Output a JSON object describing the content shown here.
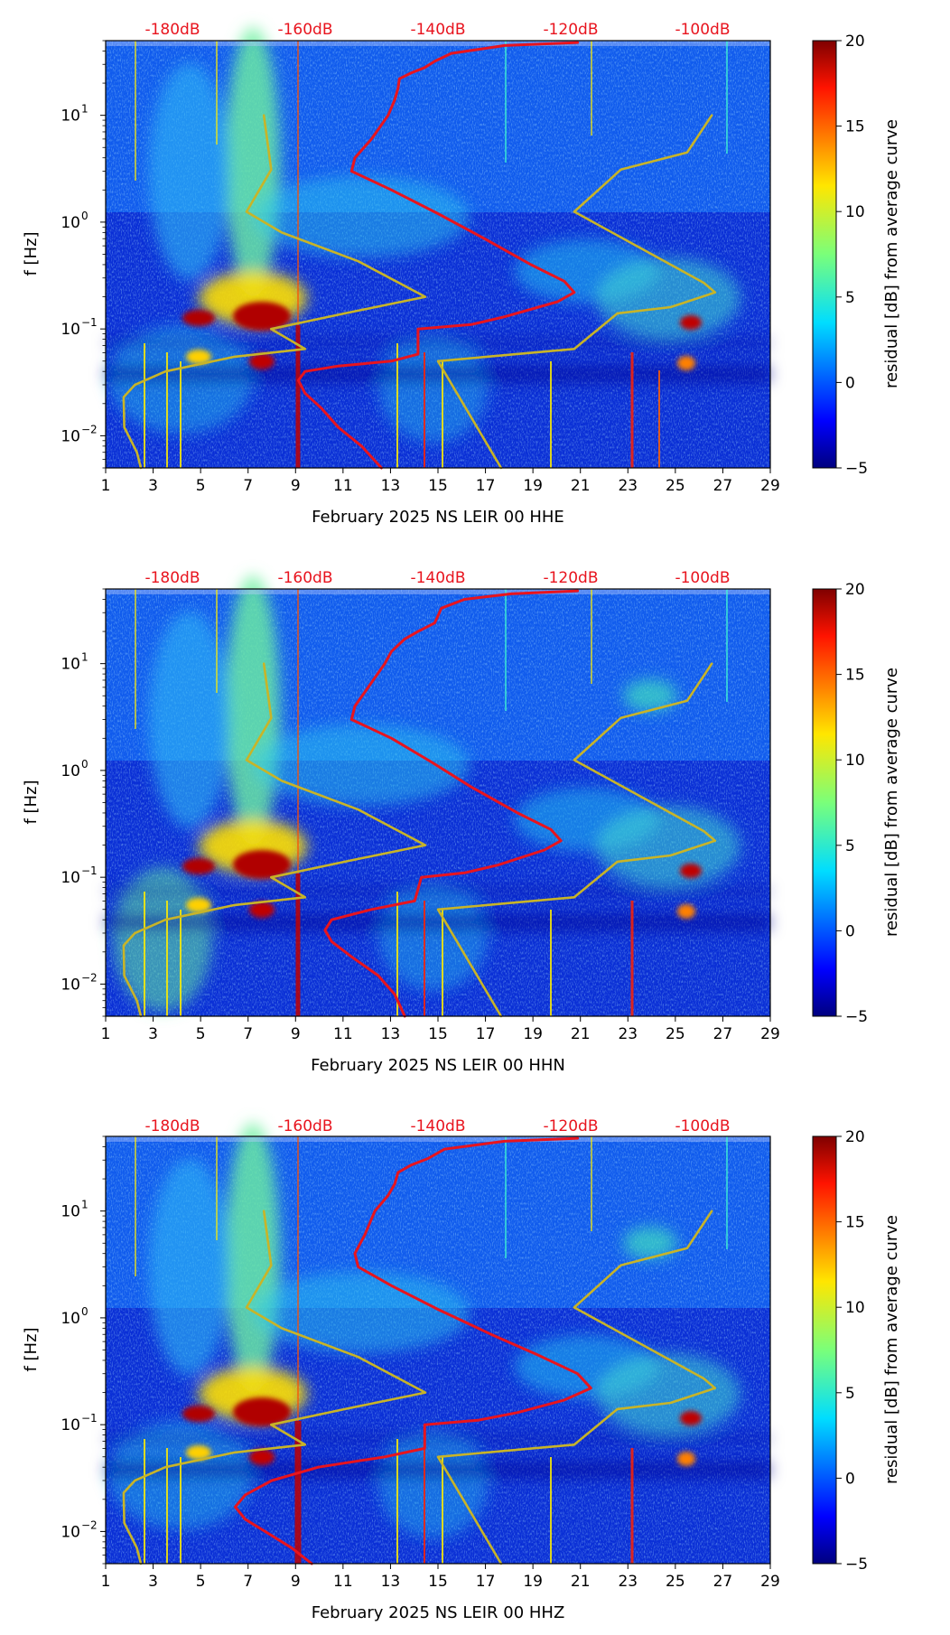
{
  "figure": {
    "ylabel": "f [Hz]",
    "colorbar_label": "residual [dB] from average curve",
    "colormap": "jet"
  },
  "colors": {
    "noise_curve": "#e8141e",
    "model_curves": "#c8b428",
    "db_axis_text": "#e8141e",
    "text": "#000000"
  },
  "chart_data": [
    {
      "type": "heatmap",
      "title": "",
      "xlabel": "February 2025 NS LEIR 00 HHE",
      "ylabel": "f [Hz]",
      "x_ticks": [
        "1",
        "3",
        "5",
        "7",
        "9",
        "11",
        "13",
        "15",
        "17",
        "19",
        "21",
        "23",
        "25",
        "27",
        "29"
      ],
      "xlim": [
        1,
        29
      ],
      "yscale": "log",
      "ylim": [
        0.005,
        50
      ],
      "y_ticks": [
        {
          "value": 0.01,
          "base": "10",
          "exp": "−2"
        },
        {
          "value": 0.1,
          "base": "10",
          "exp": "−1"
        },
        {
          "value": 1,
          "base": "10",
          "exp": "0"
        },
        {
          "value": 10,
          "base": "10",
          "exp": "1"
        }
      ],
      "top_axis": {
        "labels": [
          "-180dB",
          "-160dB",
          "-140dB",
          "-120dB",
          "-100dB"
        ],
        "values": [
          -180,
          -160,
          -140,
          -120,
          -100
        ],
        "range": [
          -190,
          -90
        ]
      },
      "colorbar": {
        "min": -5,
        "max": 20,
        "ticks": [
          "−5",
          "0",
          "5",
          "10",
          "15",
          "20"
        ],
        "label": "residual [dB] from average curve"
      },
      "series": [
        {
          "name": "noise curve",
          "color": "#e8141e",
          "points": [
            [
              -148.5,
              0.005
            ],
            [
              -151.5,
              0.008
            ],
            [
              -155,
              0.012
            ],
            [
              -157.5,
              0.018
            ],
            [
              -160,
              0.025
            ],
            [
              -161,
              0.033
            ],
            [
              -160,
              0.04
            ],
            [
              -155,
              0.045
            ],
            [
              -147,
              0.05
            ],
            [
              -143,
              0.058
            ],
            [
              -143,
              0.1
            ],
            [
              -135,
              0.11
            ],
            [
              -130,
              0.13
            ],
            [
              -122,
              0.18
            ],
            [
              -119.5,
              0.22
            ],
            [
              -121,
              0.28
            ],
            [
              -126,
              0.4
            ],
            [
              -133,
              0.7
            ],
            [
              -140,
              1.2
            ],
            [
              -147,
              2
            ],
            [
              -153,
              3
            ],
            [
              -152.5,
              4
            ],
            [
              -150,
              6
            ],
            [
              -147.5,
              10
            ],
            [
              -146.5,
              14
            ],
            [
              -146,
              18
            ],
            [
              -145.8,
              22
            ],
            [
              -144,
              25
            ],
            [
              -142,
              28
            ],
            [
              -140.5,
              32
            ],
            [
              -138,
              38
            ],
            [
              -130,
              45
            ],
            [
              -119,
              48
            ]
          ]
        },
        {
          "name": "high noise model",
          "color": "#c8b428",
          "points": [
            [
              -98.8,
              10
            ],
            [
              -102.5,
              4.5
            ],
            [
              -112.5,
              3.1
            ],
            [
              -119.5,
              1.25
            ],
            [
              -100,
              0.27
            ],
            [
              -98.3,
              0.22
            ],
            [
              -105,
              0.16
            ],
            [
              -113,
              0.14
            ],
            [
              -119.5,
              0.065
            ],
            [
              -140,
              0.05
            ],
            [
              -130.5,
              0.005
            ]
          ]
        },
        {
          "name": "low noise model",
          "color": "#c8b428",
          "points": [
            [
              -166.2,
              10
            ],
            [
              -165.1,
              3.1
            ],
            [
              -168.8,
              1.25
            ],
            [
              -163.5,
              0.8
            ],
            [
              -152,
              0.43
            ],
            [
              -141.9,
              0.2
            ],
            [
              -154,
              0.14
            ],
            [
              -165.1,
              0.1
            ],
            [
              -160,
              0.065
            ],
            [
              -170.6,
              0.055
            ],
            [
              -181,
              0.04
            ],
            [
              -185.6,
              0.03
            ],
            [
              -187.3,
              0.023
            ],
            [
              -187.2,
              0.012
            ],
            [
              -185.3,
              0.007
            ],
            [
              -184.7,
              0.005
            ]
          ]
        }
      ]
    },
    {
      "type": "heatmap",
      "title": "",
      "xlabel": "February 2025 NS LEIR 00 HHN",
      "ylabel": "f [Hz]",
      "x_ticks": [
        "1",
        "3",
        "5",
        "7",
        "9",
        "11",
        "13",
        "15",
        "17",
        "19",
        "21",
        "23",
        "25",
        "27",
        "29"
      ],
      "xlim": [
        1,
        29
      ],
      "yscale": "log",
      "ylim": [
        0.005,
        50
      ],
      "y_ticks": [
        {
          "value": 0.01,
          "base": "10",
          "exp": "−2"
        },
        {
          "value": 0.1,
          "base": "10",
          "exp": "−1"
        },
        {
          "value": 1,
          "base": "10",
          "exp": "0"
        },
        {
          "value": 10,
          "base": "10",
          "exp": "1"
        }
      ],
      "top_axis": {
        "labels": [
          "-180dB",
          "-160dB",
          "-140dB",
          "-120dB",
          "-100dB"
        ],
        "values": [
          -180,
          -160,
          -140,
          -120,
          -100
        ],
        "range": [
          -190,
          -90
        ]
      },
      "colorbar": {
        "min": -5,
        "max": 20,
        "ticks": [
          "−5",
          "0",
          "5",
          "10",
          "15",
          "20"
        ],
        "label": "residual [dB] from average curve"
      },
      "series": [
        {
          "name": "noise curve",
          "color": "#e8141e",
          "points": [
            [
              -145,
              0.005
            ],
            [
              -146.5,
              0.008
            ],
            [
              -149,
              0.012
            ],
            [
              -153,
              0.018
            ],
            [
              -156,
              0.025
            ],
            [
              -157,
              0.032
            ],
            [
              -156,
              0.04
            ],
            [
              -150,
              0.05
            ],
            [
              -143.5,
              0.06
            ],
            [
              -142.5,
              0.1
            ],
            [
              -136,
              0.11
            ],
            [
              -131,
              0.13
            ],
            [
              -124,
              0.18
            ],
            [
              -121.5,
              0.22
            ],
            [
              -123,
              0.28
            ],
            [
              -128,
              0.4
            ],
            [
              -135,
              0.7
            ],
            [
              -141,
              1.2
            ],
            [
              -147,
              2
            ],
            [
              -153,
              3
            ],
            [
              -152.5,
              4
            ],
            [
              -150.5,
              6
            ],
            [
              -148,
              10
            ],
            [
              -147,
              13
            ],
            [
              -145,
              17
            ],
            [
              -143,
              20
            ],
            [
              -140.5,
              24
            ],
            [
              -140,
              28
            ],
            [
              -139.5,
              33
            ],
            [
              -136,
              40
            ],
            [
              -129,
              45
            ],
            [
              -119,
              48
            ]
          ]
        },
        {
          "name": "high noise model",
          "color": "#c8b428",
          "points": [
            [
              -98.8,
              10
            ],
            [
              -102.5,
              4.5
            ],
            [
              -112.5,
              3.1
            ],
            [
              -119.5,
              1.25
            ],
            [
              -100,
              0.27
            ],
            [
              -98.3,
              0.22
            ],
            [
              -105,
              0.16
            ],
            [
              -113,
              0.14
            ],
            [
              -119.5,
              0.065
            ],
            [
              -140,
              0.05
            ],
            [
              -130.5,
              0.005
            ]
          ]
        },
        {
          "name": "low noise model",
          "color": "#c8b428",
          "points": [
            [
              -166.2,
              10
            ],
            [
              -165.1,
              3.1
            ],
            [
              -168.8,
              1.25
            ],
            [
              -163.5,
              0.8
            ],
            [
              -152,
              0.43
            ],
            [
              -141.9,
              0.2
            ],
            [
              -154,
              0.14
            ],
            [
              -165.1,
              0.1
            ],
            [
              -160,
              0.065
            ],
            [
              -170.6,
              0.055
            ],
            [
              -181,
              0.04
            ],
            [
              -185.6,
              0.03
            ],
            [
              -187.3,
              0.023
            ],
            [
              -187.2,
              0.012
            ],
            [
              -185.3,
              0.007
            ],
            [
              -184.7,
              0.005
            ]
          ]
        }
      ]
    },
    {
      "type": "heatmap",
      "title": "",
      "xlabel": "February 2025 NS LEIR 00 HHZ",
      "ylabel": "f [Hz]",
      "x_ticks": [
        "1",
        "3",
        "5",
        "7",
        "9",
        "11",
        "13",
        "15",
        "17",
        "19",
        "21",
        "23",
        "25",
        "27",
        "29"
      ],
      "xlim": [
        1,
        29
      ],
      "yscale": "log",
      "ylim": [
        0.005,
        50
      ],
      "y_ticks": [
        {
          "value": 0.01,
          "base": "10",
          "exp": "−2"
        },
        {
          "value": 0.1,
          "base": "10",
          "exp": "−1"
        },
        {
          "value": 1,
          "base": "10",
          "exp": "0"
        },
        {
          "value": 10,
          "base": "10",
          "exp": "1"
        }
      ],
      "top_axis": {
        "labels": [
          "-180dB",
          "-160dB",
          "-140dB",
          "-120dB",
          "-100dB"
        ],
        "values": [
          -180,
          -160,
          -140,
          -120,
          -100
        ],
        "range": [
          -190,
          -90
        ]
      },
      "colorbar": {
        "min": -5,
        "max": 20,
        "ticks": [
          "−5",
          "0",
          "5",
          "10",
          "15",
          "20"
        ],
        "label": "residual [dB] from average curve"
      },
      "series": [
        {
          "name": "noise curve",
          "color": "#e8141e",
          "points": [
            [
              -159,
              0.005
            ],
            [
              -162,
              0.007
            ],
            [
              -166,
              0.01
            ],
            [
              -169,
              0.013
            ],
            [
              -170.5,
              0.017
            ],
            [
              -169,
              0.022
            ],
            [
              -165,
              0.03
            ],
            [
              -158,
              0.04
            ],
            [
              -148,
              0.05
            ],
            [
              -142,
              0.06
            ],
            [
              -142,
              0.1
            ],
            [
              -134,
              0.11
            ],
            [
              -128,
              0.13
            ],
            [
              -121,
              0.17
            ],
            [
              -117,
              0.22
            ],
            [
              -119,
              0.3
            ],
            [
              -125,
              0.45
            ],
            [
              -132,
              0.7
            ],
            [
              -140,
              1.2
            ],
            [
              -147,
              2
            ],
            [
              -152,
              3
            ],
            [
              -152.5,
              4
            ],
            [
              -151,
              6
            ],
            [
              -149.5,
              10
            ],
            [
              -147.5,
              14
            ],
            [
              -146.5,
              18
            ],
            [
              -146,
              23
            ],
            [
              -144,
              27
            ],
            [
              -141.5,
              31
            ],
            [
              -139,
              38
            ],
            [
              -130,
              45
            ],
            [
              -119,
              48
            ]
          ]
        },
        {
          "name": "high noise model",
          "color": "#c8b428",
          "points": [
            [
              -98.8,
              10
            ],
            [
              -102.5,
              4.5
            ],
            [
              -112.5,
              3.1
            ],
            [
              -119.5,
              1.25
            ],
            [
              -100,
              0.27
            ],
            [
              -98.3,
              0.22
            ],
            [
              -105,
              0.16
            ],
            [
              -113,
              0.14
            ],
            [
              -119.5,
              0.065
            ],
            [
              -140,
              0.05
            ],
            [
              -130.5,
              0.005
            ]
          ]
        },
        {
          "name": "low noise model",
          "color": "#c8b428",
          "points": [
            [
              -166.2,
              10
            ],
            [
              -165.1,
              3.1
            ],
            [
              -168.8,
              1.25
            ],
            [
              -163.5,
              0.8
            ],
            [
              -152,
              0.43
            ],
            [
              -141.9,
              0.2
            ],
            [
              -154,
              0.14
            ],
            [
              -165.1,
              0.1
            ],
            [
              -160,
              0.065
            ],
            [
              -170.6,
              0.055
            ],
            [
              -181,
              0.04
            ],
            [
              -185.6,
              0.03
            ],
            [
              -187.3,
              0.023
            ],
            [
              -187.2,
              0.012
            ],
            [
              -185.3,
              0.007
            ],
            [
              -184.7,
              0.005
            ]
          ]
        }
      ]
    }
  ]
}
